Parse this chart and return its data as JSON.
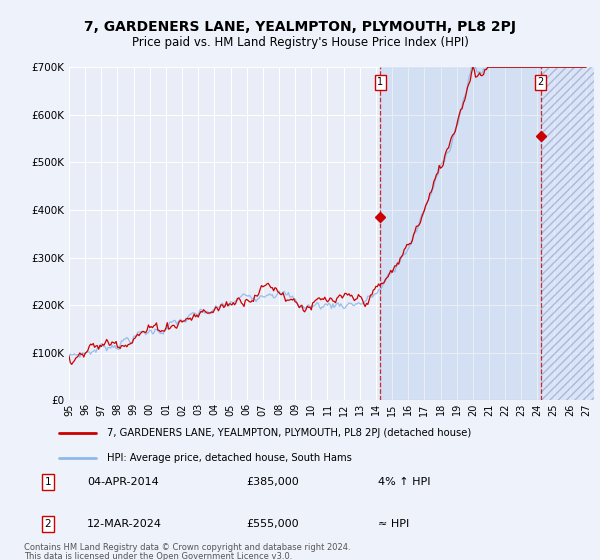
{
  "title": "7, GARDENERS LANE, YEALMPTON, PLYMOUTH, PL8 2PJ",
  "subtitle": "Price paid vs. HM Land Registry's House Price Index (HPI)",
  "ylim": [
    0,
    700000
  ],
  "xlim_start": 1995.0,
  "xlim_end": 2027.5,
  "x_tick_years": [
    1995,
    1996,
    1997,
    1998,
    1999,
    2000,
    2001,
    2002,
    2003,
    2004,
    2005,
    2006,
    2007,
    2008,
    2009,
    2010,
    2011,
    2012,
    2013,
    2014,
    2015,
    2016,
    2017,
    2018,
    2019,
    2020,
    2021,
    2022,
    2023,
    2024,
    2025,
    2026,
    2027
  ],
  "background_color": "#eef2fb",
  "plot_bg_color": "#e8edf8",
  "grid_color": "#c8d0e8",
  "hpi_color": "#90b8e8",
  "price_color": "#cc0000",
  "marker1_year": 2014.27,
  "marker1_price": 385000,
  "marker2_year": 2024.21,
  "marker2_price": 555000,
  "legend_label_price": "7, GARDENERS LANE, YEALMPTON, PLYMOUTH, PL8 2PJ (detached house)",
  "legend_label_hpi": "HPI: Average price, detached house, South Hams",
  "ann1_date": "04-APR-2014",
  "ann1_price": "£385,000",
  "ann1_vs": "4% ↑ HPI",
  "ann2_date": "12-MAR-2024",
  "ann2_price": "£555,000",
  "ann2_vs": "≈ HPI",
  "footer1": "Contains HM Land Registry data © Crown copyright and database right 2024.",
  "footer2": "This data is licensed under the Open Government Licence v3.0."
}
